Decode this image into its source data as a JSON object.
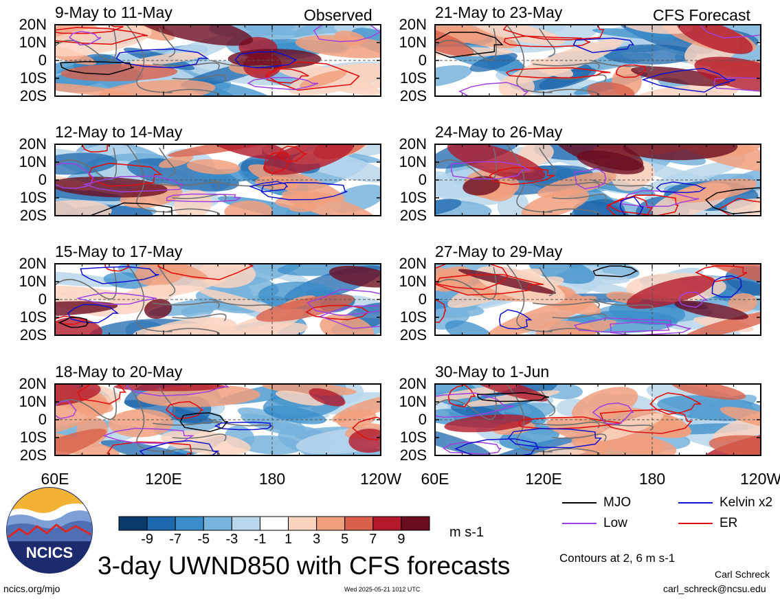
{
  "chart_data": {
    "type": "heatmap",
    "title": "3-day UWND850 with CFS forecasts",
    "units": "m s-1",
    "colorbar": {
      "tick_labels": [
        "-9",
        "-7",
        "-5",
        "-3",
        "-1",
        "1",
        "3",
        "5",
        "7",
        "9"
      ],
      "colors": [
        "#083a6a",
        "#1d67ae",
        "#3a8dc9",
        "#77b3db",
        "#b8d7ec",
        "#ffffff",
        "#fad4bf",
        "#f1a07e",
        "#d9604a",
        "#b3192a",
        "#6b0d21"
      ]
    },
    "x_ticks": [
      "60E",
      "120E",
      "180",
      "120W"
    ],
    "y_ticks": [
      "20N",
      "10N",
      "0",
      "10S",
      "20S"
    ],
    "columns": [
      {
        "label": "Observed",
        "panels": [
          "9-May to 11-May",
          "12-May to 14-May",
          "15-May to 17-May",
          "18-May to 20-May"
        ]
      },
      {
        "label": "CFS Forecast",
        "panels": [
          "21-May to 23-May",
          "24-May to 26-May",
          "27-May to 29-May",
          "30-May to 1-Jun"
        ]
      }
    ],
    "legend": [
      {
        "label": "MJO",
        "color": "#000000"
      },
      {
        "label": "Kelvin x2",
        "color": "#1010d0"
      },
      {
        "label": "Low",
        "color": "#a040e0"
      },
      {
        "label": "ER",
        "color": "#e01010"
      }
    ],
    "contour_note": "Contours at 2, 6 m s-1"
  },
  "footer": {
    "logo_text": "NCICS",
    "url": "ncics.org/mjo",
    "timestamp": "Wed 2025-05-21 1012 UTC",
    "author": "Carl Schreck",
    "email": "carl_schreck@ncsu.edu"
  }
}
